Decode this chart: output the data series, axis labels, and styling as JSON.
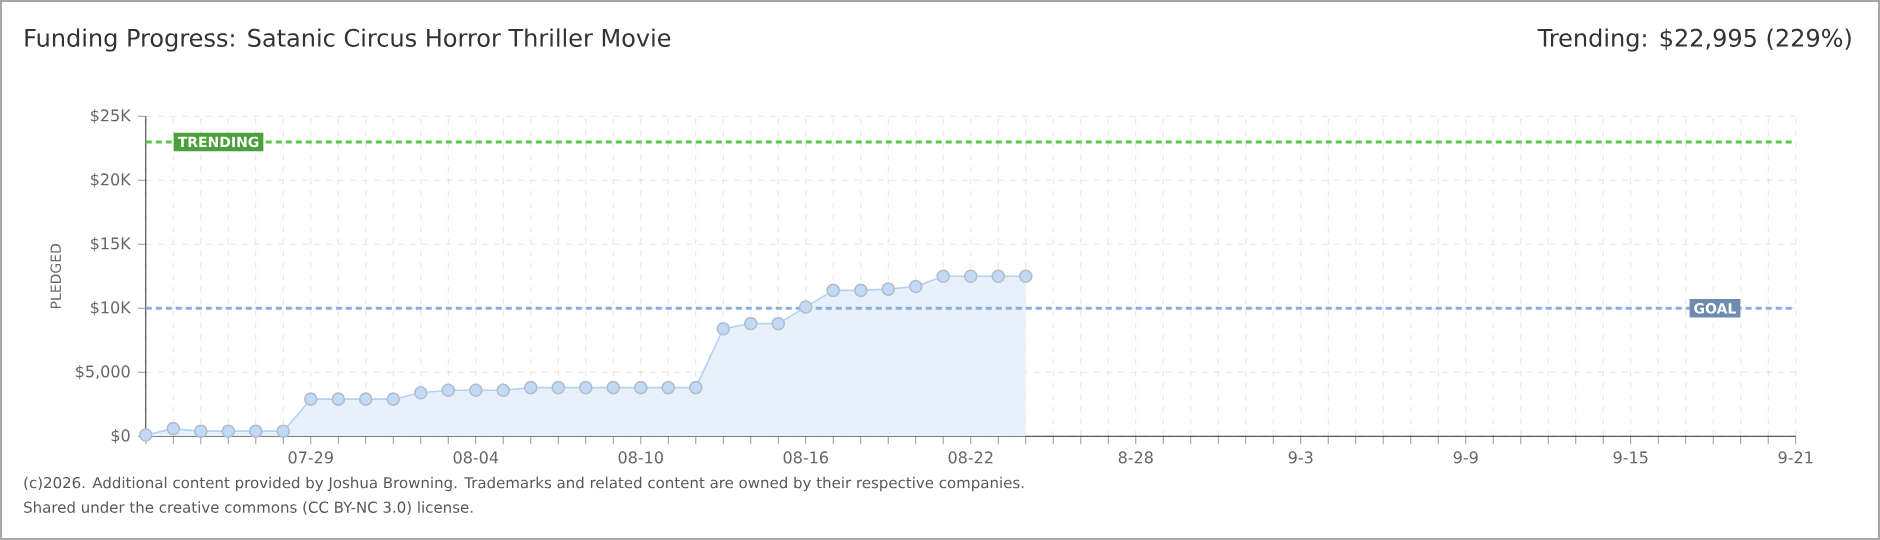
{
  "chart_data": {
    "type": "area",
    "title": "Funding Progress: Satanic Circus Horror Thriller Movie",
    "subtitle": "Trending: $22,995 (229%)",
    "ylabel": "PLEDGED",
    "categories": [
      null,
      null,
      null,
      null,
      null,
      null,
      "07-29",
      null,
      null,
      null,
      null,
      null,
      "08-04",
      null,
      null,
      null,
      null,
      null,
      "08-10",
      null,
      null,
      null,
      null,
      null,
      "08-16",
      null,
      null,
      null,
      null,
      null,
      "08-22",
      null,
      null,
      null,
      null,
      null,
      "8-28",
      null,
      null,
      null,
      null,
      null,
      "9-3",
      null,
      null,
      null,
      null,
      null,
      "9-9",
      null,
      null,
      null,
      null,
      null,
      "9-15",
      null,
      null,
      null,
      null,
      null,
      "9-21"
    ],
    "values": [
      100,
      600,
      400,
      400,
      400,
      400,
      2900,
      2900,
      2900,
      2900,
      3400,
      3600,
      3600,
      3600,
      3800,
      3800,
      3800,
      3800,
      3800,
      3800,
      3800,
      8400,
      8800,
      8800,
      10100,
      11400,
      11400,
      11500,
      11700,
      12500,
      12500,
      12500,
      12500,
      null,
      null,
      null,
      null,
      null,
      null,
      null,
      null,
      null,
      null,
      null,
      null,
      null,
      null,
      null,
      null,
      null,
      null,
      null,
      null,
      null,
      null,
      null,
      null,
      null,
      null,
      null,
      null
    ],
    "color": "#b3d1f2",
    "marker": "circle",
    "grid": true,
    "ylim": [
      0,
      25000
    ],
    "yticks": [
      {
        "value": 0,
        "label": "$0"
      },
      {
        "value": 5000,
        "label": "$5,000"
      },
      {
        "value": 10000,
        "label": "$10K"
      },
      {
        "value": 15000,
        "label": "$15K"
      },
      {
        "value": 20000,
        "label": "$20K"
      },
      {
        "value": 25000,
        "label": "$25K"
      }
    ],
    "ref_lines": [
      {
        "axis": "y",
        "value": 22995,
        "label": "TRENDING",
        "color": "#5cc84a",
        "line_style": "dashed"
      },
      {
        "axis": "y",
        "value": 10000,
        "label": "GOAL",
        "color": "#8aaedb",
        "line_style": "dashed"
      }
    ],
    "annotations": [
      "(c)2026. Additional content provided by Joshua Browning. Trademarks and related content are owned by their respective companies.",
      "Shared under the creative commons (CC BY-NC 3.0) license."
    ]
  }
}
